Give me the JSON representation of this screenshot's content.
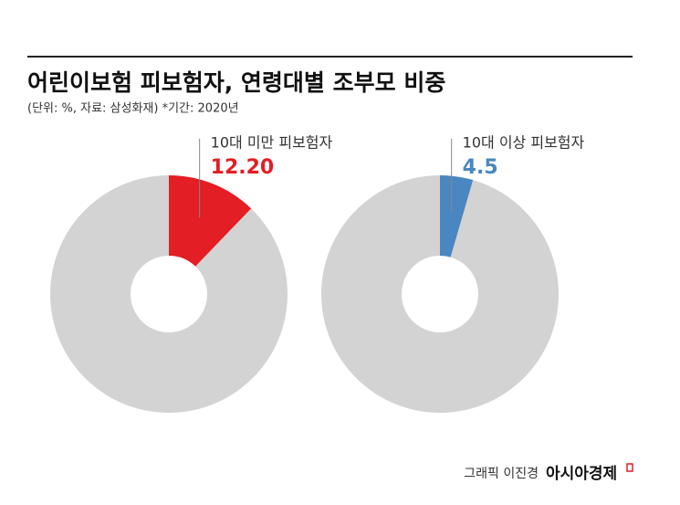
{
  "header": {
    "title": "어린이보험 피보험자, 연령대별 조부모 비중",
    "subtitle": "(단위: %, 자료: 삼성화재) *기간: 2020년"
  },
  "chart_data": [
    {
      "type": "pie",
      "donut": true,
      "categories": [
        "10대 미만 피보험자",
        null
      ],
      "values": [
        12.2,
        87.8
      ],
      "value_labels": [
        "12.20",
        null
      ],
      "colors": [
        "#e31e24",
        "#d3d3d3"
      ]
    },
    {
      "type": "pie",
      "donut": true,
      "categories": [
        "10대 이상 피보험자",
        null
      ],
      "values": [
        4.5,
        95.5
      ],
      "value_labels": [
        "4.5",
        null
      ],
      "colors": [
        "#4a87c0",
        "#d3d3d3"
      ]
    }
  ],
  "footer": {
    "credit": "그래픽 이진경",
    "logo": "아시아경제"
  }
}
